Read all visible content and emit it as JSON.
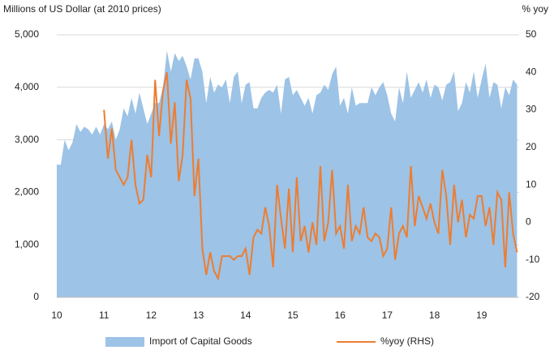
{
  "chart_data": {
    "type": "area-line",
    "y_label": "Millions of US Dollar (at 2010 prices)",
    "y2_label": "% yoy",
    "categories": [
      "10",
      null,
      null,
      null,
      null,
      null,
      null,
      null,
      null,
      null,
      null,
      null,
      "11",
      null,
      null,
      null,
      null,
      null,
      null,
      null,
      null,
      null,
      null,
      null,
      "12",
      null,
      null,
      null,
      null,
      null,
      null,
      null,
      null,
      null,
      null,
      null,
      "13",
      null,
      null,
      null,
      null,
      null,
      null,
      null,
      null,
      null,
      null,
      null,
      "14",
      null,
      null,
      null,
      null,
      null,
      null,
      null,
      null,
      null,
      null,
      null,
      "15",
      null,
      null,
      null,
      null,
      null,
      null,
      null,
      null,
      null,
      null,
      null,
      "16",
      null,
      null,
      null,
      null,
      null,
      null,
      null,
      null,
      null,
      null,
      null,
      "17",
      null,
      null,
      null,
      null,
      null,
      null,
      null,
      null,
      null,
      null,
      null,
      "18",
      null,
      null,
      null,
      null,
      null,
      null,
      null,
      null,
      null,
      null,
      null,
      "19",
      null,
      null,
      null,
      null,
      null,
      null,
      null,
      null,
      null
    ],
    "series": [
      {
        "name": "Import of Capital Goods",
        "color": "#9dc3e6",
        "kind": "area",
        "values": [
          2530,
          2520,
          3000,
          2800,
          2950,
          3300,
          3150,
          3250,
          3200,
          3100,
          3250,
          3100,
          3300,
          3200,
          3350,
          3000,
          3200,
          3600,
          3450,
          3800,
          3500,
          3900,
          3600,
          3300,
          3500,
          3700,
          3700,
          4000,
          4700,
          4300,
          4650,
          4500,
          4600,
          4400,
          4150,
          4550,
          4550,
          4300,
          3700,
          4200,
          3900,
          4050,
          4000,
          4150,
          3700,
          4200,
          4300,
          3700,
          4050,
          4100,
          3600,
          3600,
          3800,
          3900,
          3950,
          3900,
          4050,
          3500,
          4150,
          4200,
          3850,
          3950,
          3800,
          3650,
          3800,
          3500,
          3850,
          3900,
          4050,
          3950,
          4250,
          4400,
          3650,
          3800,
          3500,
          4000,
          3650,
          3700,
          3700,
          3700,
          4000,
          3850,
          4000,
          4100,
          3850,
          3500,
          3350,
          4000,
          3700,
          4300,
          3800,
          3950,
          4100,
          3900,
          4150,
          3800,
          4050,
          4000,
          3750,
          4050,
          4100,
          4300,
          3550,
          3700,
          4100,
          3900,
          4300,
          3800,
          4150,
          4450,
          3800,
          4100,
          4050,
          3600,
          4000,
          3850,
          4150,
          4050
        ]
      },
      {
        "name": "%yoy (RHS)",
        "color": "#ed7d31",
        "kind": "line",
        "axis": "y2",
        "values": [
          null,
          null,
          null,
          null,
          null,
          null,
          null,
          null,
          null,
          null,
          null,
          null,
          30,
          17,
          25,
          14,
          12,
          10,
          12,
          22,
          10,
          5,
          6,
          18,
          12,
          38,
          23,
          35,
          40,
          21,
          32,
          11,
          18,
          38,
          33,
          7,
          17,
          -7,
          -14,
          -8,
          -13,
          -15,
          -9,
          -9,
          -9,
          -10,
          -9,
          -9,
          -7,
          -14,
          -4,
          -2,
          -3,
          4,
          -1,
          -12,
          10,
          1,
          -7,
          9,
          -8,
          12,
          -5,
          -1,
          -8,
          0,
          -6,
          15,
          -5,
          0,
          14,
          -3,
          -1,
          -7,
          10,
          -5,
          -1,
          -3,
          4,
          -4,
          -5,
          -3,
          -4,
          -9,
          -7,
          4,
          -10,
          -3,
          -1,
          -4,
          15,
          -1,
          7,
          4,
          1,
          5,
          0,
          -3,
          14,
          7,
          -6,
          10,
          0,
          6,
          -4,
          2,
          1,
          7,
          7,
          -1,
          4,
          -6,
          8,
          6,
          -12,
          8,
          -3,
          -8
        ]
      }
    ],
    "ylim": [
      0,
      5000
    ],
    "yticks": [
      0,
      {
        "value": 1000,
        "label": "1,000"
      },
      {
        "value": 2000,
        "label": "2,000"
      },
      {
        "value": 3000,
        "label": "3,000"
      },
      {
        "value": 4000,
        "label": "4,000"
      },
      {
        "value": 5000,
        "label": "5,000"
      }
    ],
    "y2lim": [
      -20,
      50
    ],
    "y2ticks": [
      -20,
      -10,
      0,
      10,
      20,
      30,
      40,
      50
    ],
    "grid": true
  }
}
